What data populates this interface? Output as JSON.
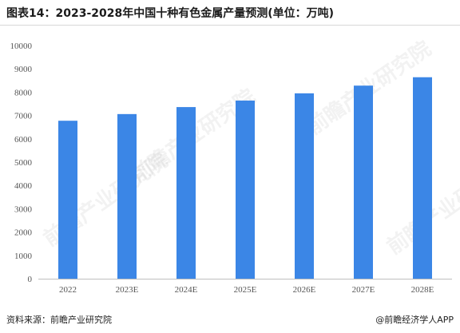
{
  "title": "图表14：2023-2028年中国十种有色金属产量预测(单位：万吨)",
  "footer": {
    "source": "资料来源：前瞻产业研究院",
    "brand": "@前瞻经济学人APP"
  },
  "watermark_text": "前瞻产业研究院",
  "colors": {
    "bar": "#3b86e6",
    "axis": "#bfbfbf",
    "tick_text": "#555555"
  },
  "chart_data": {
    "type": "bar",
    "title": "图表14：2023-2028年中国十种有色金属产量预测(单位：万吨)",
    "categories": [
      "2022",
      "2023E",
      "2024E",
      "2025E",
      "2026E",
      "2027E",
      "2028E"
    ],
    "series": [
      {
        "values": [
          6774,
          7060,
          7360,
          7640,
          7950,
          8280,
          8640
        ]
      }
    ],
    "ylim": [
      0,
      10000
    ],
    "yticks": [
      0,
      1000,
      2000,
      3000,
      4000,
      5000,
      6000,
      7000,
      8000,
      9000,
      10000
    ],
    "xlabel": "",
    "ylabel": "",
    "grid": false,
    "legend": "none"
  }
}
